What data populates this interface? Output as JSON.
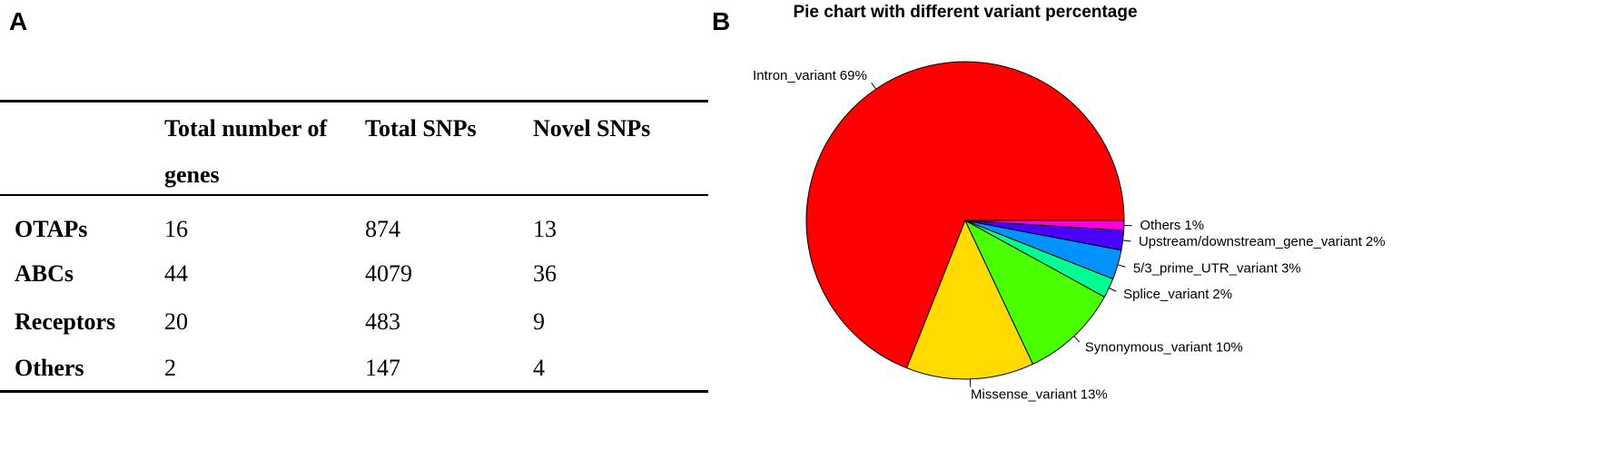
{
  "panel_labels": [
    "A",
    "B"
  ],
  "table": {
    "header": [
      "Total number of genes",
      "Total SNPs",
      "Novel SNPs"
    ],
    "rows": [
      [
        "OTAPs",
        16,
        874,
        13
      ],
      [
        "ABCs",
        44,
        4079,
        36
      ],
      [
        "Receptors",
        20,
        483,
        9
      ],
      [
        "Others",
        2,
        147,
        4
      ]
    ]
  },
  "chart_data": {
    "type": "pie",
    "title": "Pie chart with different variant percentage",
    "categories": [
      "Intron_variant",
      "Missense_variant",
      "Synonymous_variant",
      "Splice_variant",
      "5/3_prime_UTR_variant",
      "Upstream/downstream_gene_variant",
      "Others"
    ],
    "values": [
      69,
      13,
      10,
      2,
      3,
      2,
      1
    ],
    "value_labels": [
      "69%",
      "13%",
      "10%",
      "2%",
      "3%",
      "2%",
      "1%"
    ],
    "colors": [
      "#FF0000",
      "#FFDB00",
      "#49FF00",
      "#00FF92",
      "#0092FF",
      "#4900FF",
      "#FF00DB"
    ]
  }
}
